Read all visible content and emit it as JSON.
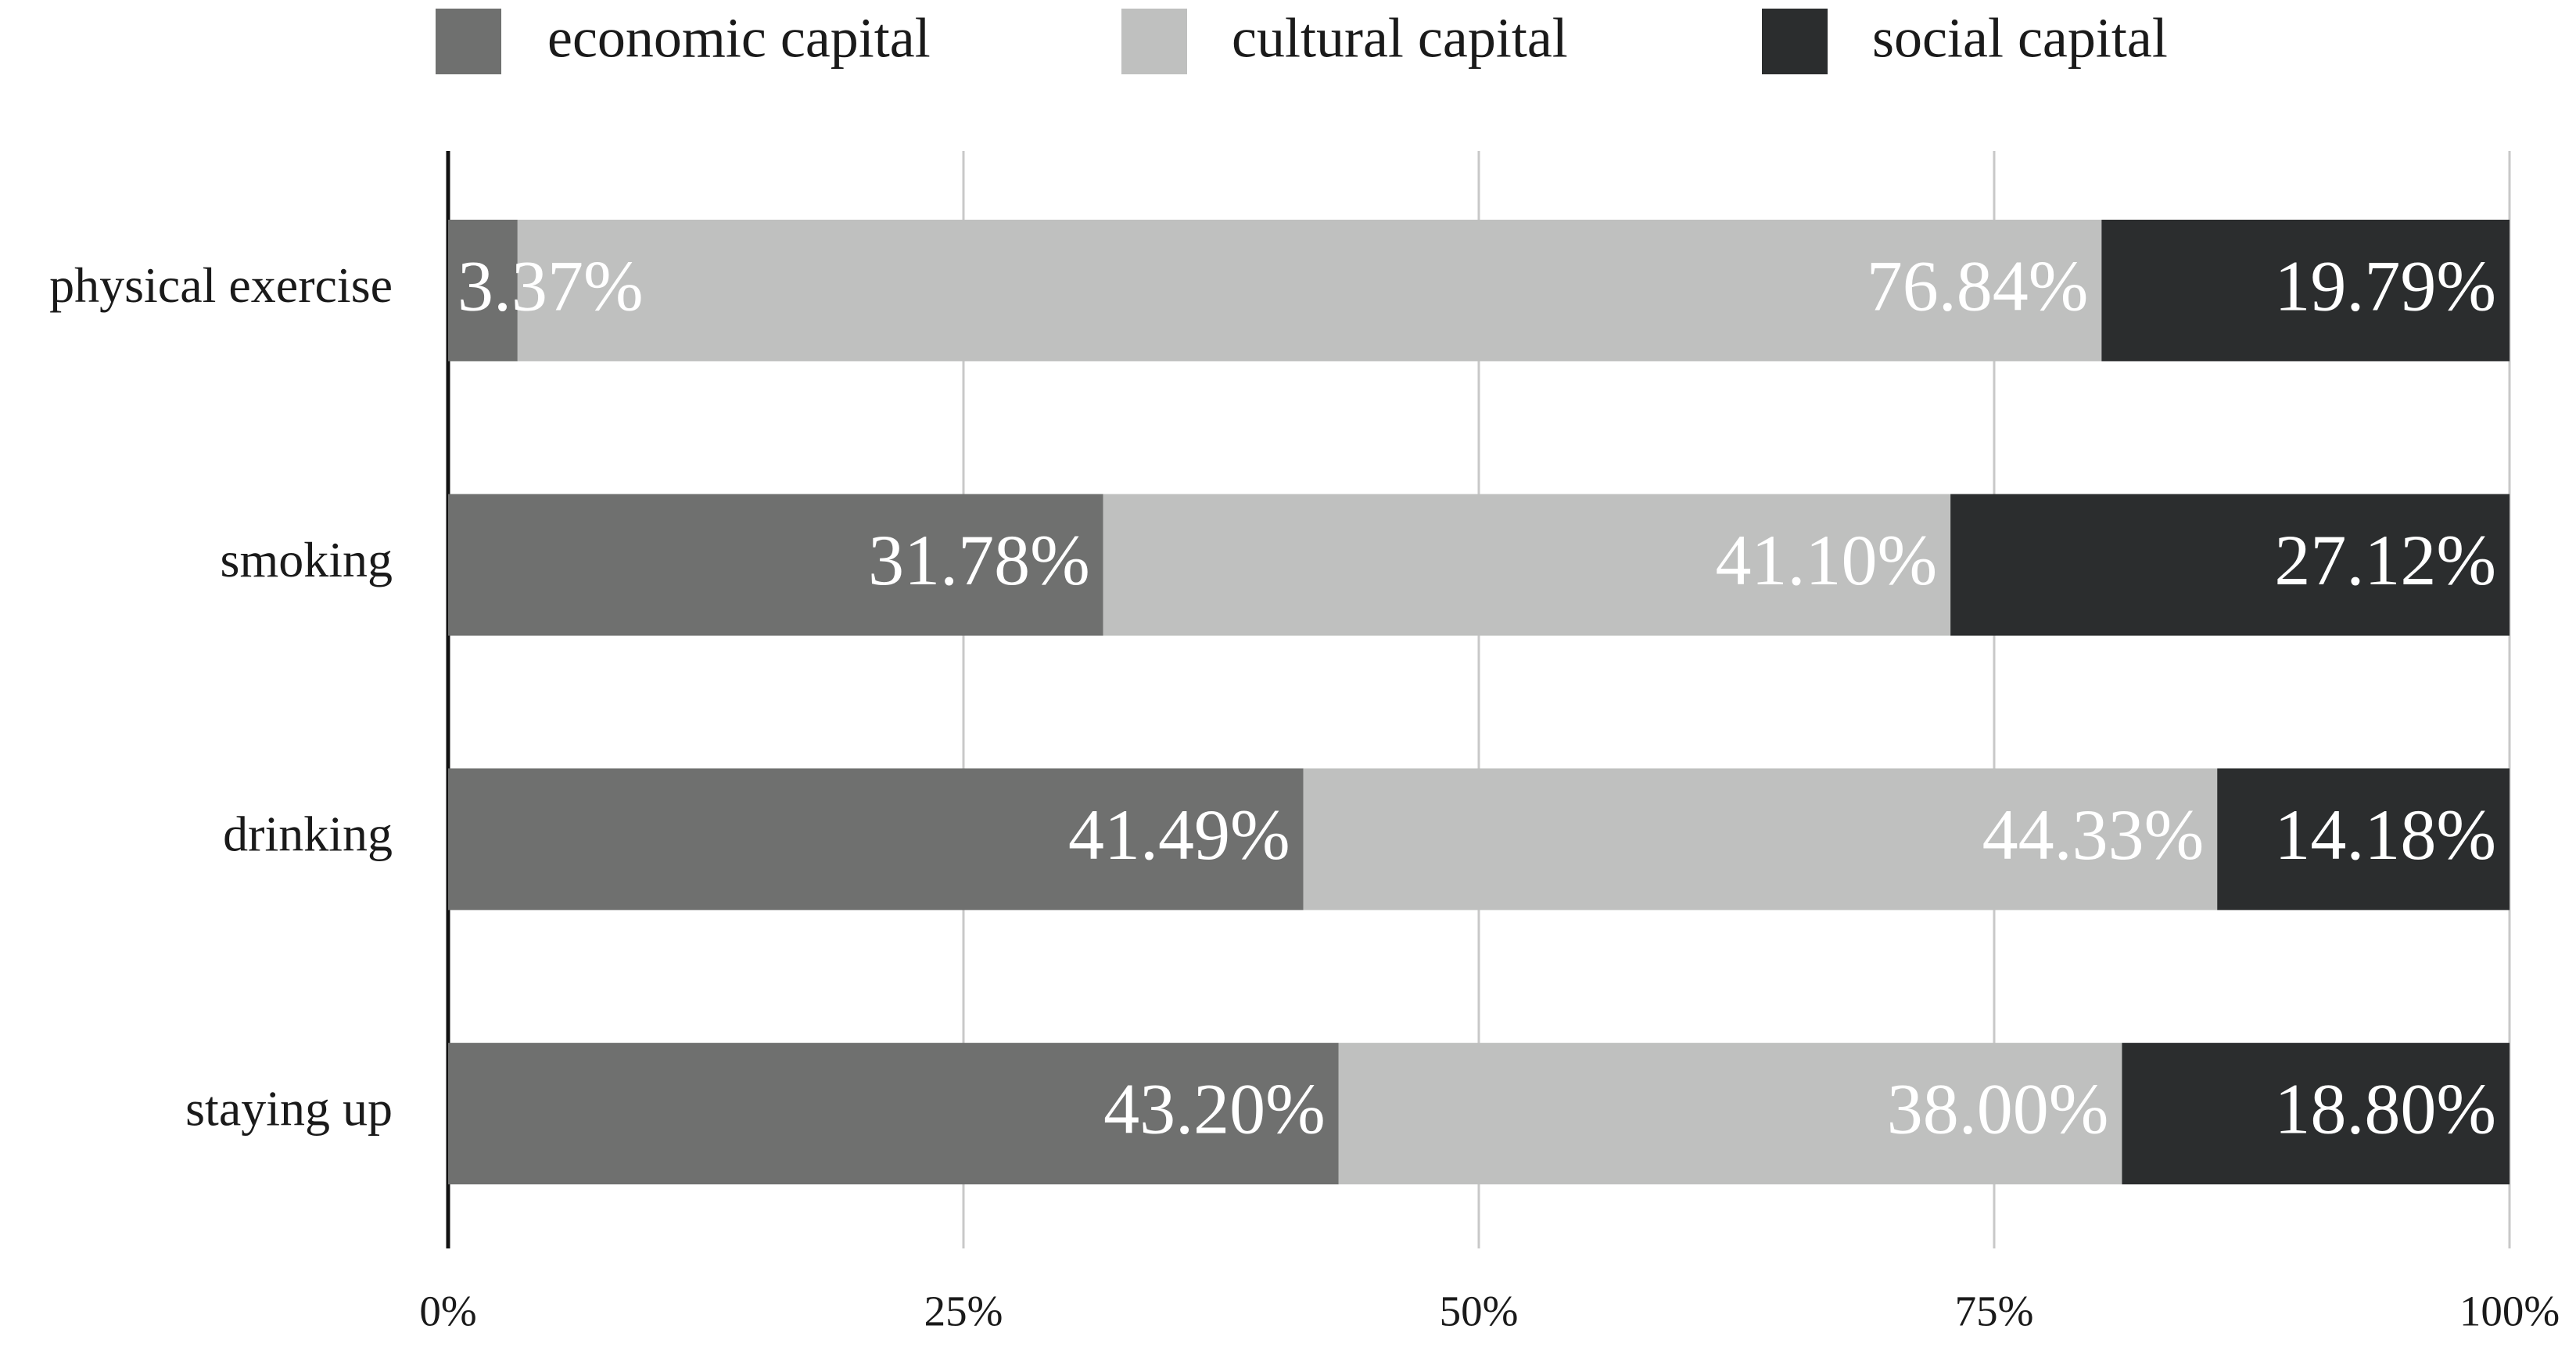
{
  "chart_data": {
    "type": "stacked-bar-horizontal",
    "categories": [
      "physical exercise",
      "smoking",
      "drinking",
      "staying up"
    ],
    "series": [
      {
        "name": "economic capital",
        "color": "#6f706f",
        "values": [
          3.37,
          31.78,
          41.49,
          43.2
        ],
        "value_labels": [
          "3.37%",
          "31.78%",
          "41.49%",
          "43.20%"
        ]
      },
      {
        "name": "cultural capital",
        "color": "#bfc0bf",
        "values": [
          76.84,
          41.1,
          44.33,
          38.0
        ],
        "value_labels": [
          "76.84%",
          "41.10%",
          "44.33%",
          "38.00%"
        ]
      },
      {
        "name": "social capital",
        "color": "#2b2d2e",
        "values": [
          19.79,
          27.12,
          14.18,
          18.8
        ],
        "value_labels": [
          "19.79%",
          "27.12%",
          "14.18%",
          "18.80%"
        ]
      }
    ],
    "xlim": [
      0,
      100
    ],
    "xticks": [
      {
        "value": 0,
        "label": "0%"
      },
      {
        "value": 25,
        "label": "25%"
      },
      {
        "value": 50,
        "label": "50%"
      },
      {
        "value": 75,
        "label": "75%"
      },
      {
        "value": 100,
        "label": "100%"
      }
    ],
    "grid": true,
    "legend": "top"
  }
}
